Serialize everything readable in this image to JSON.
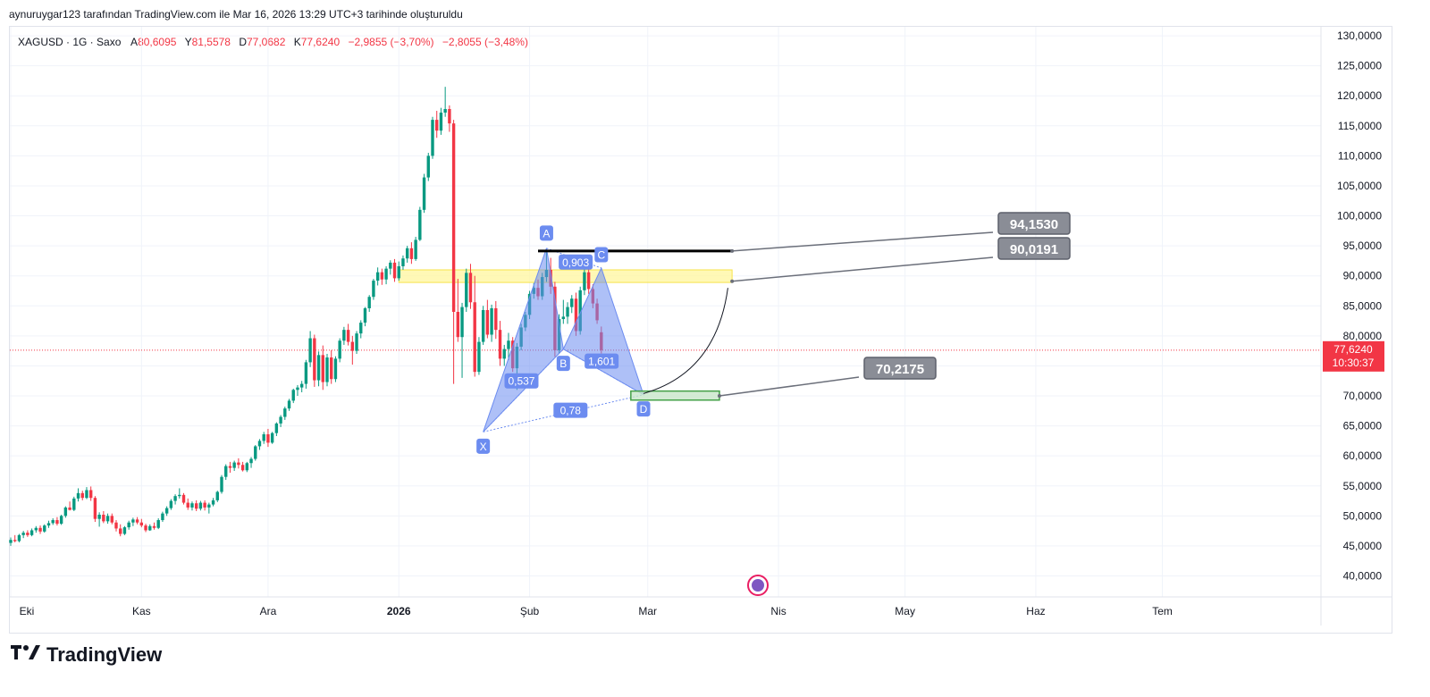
{
  "header": {
    "publish_line": "aynuruygar123 tarafından TradingView.com ile Mar 16, 2026 13:29 UTC+3 tarihinde oluşturuldu"
  },
  "legend": {
    "symbol": "XAGUSD · 1G · Saxo",
    "open_label": "A",
    "open": "80,6095",
    "high_label": "Y",
    "high": "81,5578",
    "low_label": "D",
    "low": "77,0682",
    "close_label": "K",
    "close": "77,6240",
    "change": "−2,9855 (−3,70%)",
    "change2": "−2,8055 (−3,48%)"
  },
  "price_badge": {
    "price": "77,6240",
    "timer": "10:30:37",
    "color": "#f23645"
  },
  "colors": {
    "up": "#089981",
    "down": "#f23645",
    "pattern": "#6c8cf0",
    "zone_yellow": "#fff59d",
    "zone_green": "#c8e6c9",
    "callout": "#8a8d96"
  },
  "logo": {
    "icon": "tradingview-logo-icon",
    "text": "TradingView"
  },
  "chart_data": {
    "type": "candlestick",
    "title": "",
    "y_axis": {
      "ticks": [
        "130,0000",
        "125,0000",
        "120,0000",
        "115,0000",
        "110,0000",
        "105,0000",
        "100,0000",
        "95,0000",
        "90,0000",
        "85,0000",
        "80,0000",
        "75,0000",
        "70,0000",
        "65,0000",
        "60,0000",
        "55,0000",
        "50,0000",
        "45,0000",
        "40,0000"
      ],
      "tick_values": [
        130,
        125,
        120,
        115,
        110,
        105,
        100,
        95,
        90,
        85,
        80,
        75,
        70,
        65,
        60,
        55,
        50,
        45,
        40
      ],
      "range": [
        36.5,
        131.5
      ],
      "position": "right"
    },
    "x_axis": {
      "labels": [
        "Eki",
        "Kas",
        "Ara",
        "2026",
        "Şub",
        "Mar",
        "Nis",
        "May",
        "Haz",
        "Tem"
      ],
      "label_days": [
        0,
        31,
        61,
        92,
        123,
        151,
        182,
        212,
        243,
        273
      ],
      "range_days": [
        -5,
        302
      ],
      "bold_labels": [
        "2026"
      ]
    },
    "candles_ohlc_by_day": [
      [
        0,
        45.5,
        46.4,
        45.0,
        46.0
      ],
      [
        1,
        46.0,
        46.8,
        45.6,
        45.8
      ],
      [
        2,
        45.8,
        47.0,
        45.6,
        46.8
      ],
      [
        3,
        46.8,
        47.5,
        46.3,
        47.2
      ],
      [
        4,
        47.2,
        47.6,
        46.5,
        46.8
      ],
      [
        5,
        46.8,
        47.9,
        46.6,
        47.6
      ],
      [
        6,
        47.6,
        48.3,
        47.2,
        48.0
      ],
      [
        7,
        48.0,
        48.4,
        47.0,
        47.4
      ],
      [
        8,
        47.4,
        48.6,
        47.2,
        48.4
      ],
      [
        9,
        48.4,
        49.2,
        48.0,
        48.8
      ],
      [
        10,
        48.8,
        49.6,
        48.5,
        49.3
      ],
      [
        11,
        49.3,
        49.8,
        48.4,
        48.7
      ],
      [
        12,
        48.7,
        50.2,
        48.5,
        50.0
      ],
      [
        13,
        50.0,
        51.6,
        49.7,
        51.4
      ],
      [
        14,
        51.4,
        52.4,
        50.9,
        51.0
      ],
      [
        15,
        51.0,
        53.2,
        50.8,
        52.9
      ],
      [
        16,
        52.9,
        54.6,
        52.4,
        53.8
      ],
      [
        17,
        53.8,
        54.2,
        52.6,
        53.0
      ],
      [
        18,
        53.0,
        54.8,
        52.8,
        54.3
      ],
      [
        19,
        54.3,
        54.9,
        52.5,
        53.0
      ],
      [
        20,
        53.0,
        53.3,
        49.0,
        49.5
      ],
      [
        21,
        49.5,
        50.6,
        48.2,
        50.2
      ],
      [
        22,
        50.2,
        50.8,
        48.8,
        49.1
      ],
      [
        23,
        49.1,
        50.4,
        48.7,
        50.0
      ],
      [
        24,
        50.0,
        50.4,
        48.6,
        48.9
      ],
      [
        25,
        48.9,
        49.3,
        47.4,
        47.9
      ],
      [
        26,
        47.9,
        48.6,
        46.6,
        47.0
      ],
      [
        27,
        47.0,
        48.3,
        46.8,
        48.1
      ],
      [
        28,
        48.1,
        49.2,
        47.7,
        48.9
      ],
      [
        29,
        48.9,
        49.7,
        48.3,
        49.4
      ],
      [
        30,
        49.4,
        49.8,
        48.6,
        48.9
      ],
      [
        31,
        48.9,
        49.5,
        48.1,
        48.4
      ],
      [
        32,
        48.4,
        48.7,
        47.3,
        47.6
      ],
      [
        33,
        47.6,
        48.6,
        47.5,
        48.3
      ],
      [
        34,
        48.3,
        48.9,
        47.7,
        48.0
      ],
      [
        35,
        48.0,
        49.6,
        47.8,
        49.3
      ],
      [
        36,
        49.3,
        50.7,
        49.0,
        50.4
      ],
      [
        37,
        50.4,
        51.6,
        50.0,
        51.3
      ],
      [
        38,
        51.3,
        52.8,
        51.0,
        52.5
      ],
      [
        39,
        52.5,
        53.6,
        51.9,
        53.3
      ],
      [
        40,
        53.3,
        54.6,
        52.9,
        53.5
      ],
      [
        41,
        53.5,
        53.8,
        51.9,
        52.2
      ],
      [
        42,
        52.2,
        52.9,
        51.0,
        51.4
      ],
      [
        43,
        51.4,
        52.4,
        50.9,
        52.1
      ],
      [
        44,
        52.1,
        52.6,
        50.8,
        51.2
      ],
      [
        45,
        51.2,
        52.5,
        50.9,
        52.2
      ],
      [
        46,
        52.2,
        52.6,
        50.9,
        51.4
      ],
      [
        47,
        51.4,
        52.2,
        50.4,
        51.9
      ],
      [
        48,
        51.9,
        53.0,
        51.6,
        52.6
      ],
      [
        49,
        52.6,
        54.2,
        52.3,
        54.0
      ],
      [
        50,
        54.0,
        56.8,
        53.7,
        56.5
      ],
      [
        51,
        56.5,
        58.6,
        56.0,
        58.3
      ],
      [
        52,
        58.3,
        59.0,
        57.2,
        58.0
      ],
      [
        53,
        58.0,
        59.2,
        57.5,
        58.9
      ],
      [
        54,
        58.9,
        59.6,
        57.9,
        58.5
      ],
      [
        55,
        58.5,
        59.0,
        57.4,
        57.6
      ],
      [
        56,
        57.6,
        59.0,
        57.3,
        58.8
      ],
      [
        57,
        58.8,
        59.8,
        58.0,
        59.5
      ],
      [
        58,
        59.5,
        61.8,
        59.2,
        61.6
      ],
      [
        59,
        61.6,
        62.8,
        61.0,
        62.5
      ],
      [
        60,
        62.5,
        64.0,
        62.0,
        63.6
      ],
      [
        61,
        63.6,
        64.5,
        61.5,
        62.2
      ],
      [
        62,
        62.2,
        64.0,
        62.0,
        63.8
      ],
      [
        63,
        63.8,
        65.6,
        63.3,
        65.4
      ],
      [
        64,
        65.4,
        66.8,
        64.8,
        66.5
      ],
      [
        65,
        66.5,
        68.2,
        66.0,
        67.9
      ],
      [
        66,
        67.9,
        69.5,
        67.5,
        69.2
      ],
      [
        67,
        69.2,
        71.2,
        68.8,
        71.0
      ],
      [
        68,
        71.0,
        71.8,
        70.0,
        71.4
      ],
      [
        69,
        71.4,
        72.5,
        70.6,
        72.0
      ],
      [
        70,
        72.0,
        76.0,
        71.2,
        75.6
      ],
      [
        71,
        75.6,
        80.8,
        74.8,
        79.6
      ],
      [
        72,
        79.6,
        80.2,
        71.5,
        72.6
      ],
      [
        73,
        72.6,
        77.4,
        71.6,
        76.8
      ],
      [
        74,
        76.8,
        78.4,
        71.0,
        72.3
      ],
      [
        75,
        72.3,
        77.0,
        71.6,
        76.4
      ],
      [
        76,
        76.4,
        77.6,
        72.0,
        72.8
      ],
      [
        77,
        72.8,
        76.6,
        72.3,
        76.2
      ],
      [
        78,
        76.2,
        79.6,
        75.6,
        79.2
      ],
      [
        79,
        79.2,
        81.5,
        78.5,
        81.0
      ],
      [
        80,
        81.0,
        82.0,
        78.4,
        79.0
      ],
      [
        81,
        79.0,
        80.0,
        75.2,
        77.5
      ],
      [
        82,
        77.5,
        80.8,
        77.0,
        80.4
      ],
      [
        83,
        80.4,
        82.6,
        79.6,
        82.2
      ],
      [
        84,
        82.2,
        84.8,
        81.6,
        84.6
      ],
      [
        85,
        84.6,
        86.8,
        84.0,
        86.5
      ],
      [
        86,
        86.5,
        89.5,
        86.0,
        89.2
      ],
      [
        87,
        89.2,
        91.4,
        88.4,
        90.6
      ],
      [
        88,
        90.6,
        91.2,
        88.5,
        89.4
      ],
      [
        89,
        89.4,
        91.6,
        88.6,
        91.2
      ],
      [
        90,
        91.2,
        92.6,
        90.2,
        92.2
      ],
      [
        91,
        92.2,
        92.8,
        89.0,
        89.6
      ],
      [
        92,
        89.6,
        92.4,
        89.2,
        91.6
      ],
      [
        93,
        91.6,
        93.4,
        91.0,
        92.9
      ],
      [
        94,
        92.9,
        95.0,
        92.2,
        94.6
      ],
      [
        95,
        94.6,
        95.6,
        92.0,
        92.8
      ],
      [
        96,
        92.8,
        96.5,
        92.5,
        96.0
      ],
      [
        97,
        96.0,
        101.5,
        95.8,
        101.0
      ],
      [
        98,
        101.0,
        107.0,
        100.5,
        106.4
      ],
      [
        99,
        106.4,
        110.5,
        105.8,
        110.0
      ],
      [
        100,
        110.0,
        116.5,
        109.5,
        116.0
      ],
      [
        101,
        116.0,
        117.5,
        113.0,
        114.2
      ],
      [
        102,
        114.2,
        118.0,
        113.5,
        117.2
      ],
      [
        103,
        117.2,
        121.5,
        116.5,
        117.8
      ],
      [
        104,
        117.8,
        118.4,
        114.0,
        115.4
      ],
      [
        105,
        115.4,
        116.0,
        72.0,
        84.0
      ],
      [
        106,
        84.0,
        89.5,
        79.0,
        79.8
      ],
      [
        107,
        79.8,
        85.5,
        73.0,
        84.8
      ],
      [
        108,
        84.8,
        91.2,
        84.0,
        90.5
      ],
      [
        109,
        90.5,
        92.0,
        84.5,
        85.6
      ],
      [
        110,
        85.6,
        90.0,
        73.2,
        74.0
      ],
      [
        111,
        74.0,
        79.8,
        73.5,
        79.0
      ],
      [
        112,
        79.0,
        85.0,
        78.5,
        84.3
      ],
      [
        113,
        84.3,
        86.0,
        79.6,
        80.2
      ],
      [
        114,
        80.2,
        85.2,
        79.0,
        84.6
      ],
      [
        115,
        84.6,
        85.8,
        79.5,
        81.0
      ],
      [
        116,
        81.0,
        82.5,
        75.0,
        76.2
      ],
      [
        117,
        76.2,
        78.5,
        75.0,
        77.8
      ],
      [
        118,
        77.8,
        80.5,
        76.0,
        79.2
      ],
      [
        119,
        79.2,
        79.8,
        74.0,
        74.6
      ],
      [
        120,
        74.6,
        78.8,
        71.0,
        78.2
      ],
      [
        121,
        78.2,
        82.0,
        77.6,
        81.4
      ],
      [
        122,
        81.4,
        84.0,
        80.8,
        83.5
      ],
      [
        123,
        83.5,
        87.5,
        82.8,
        87.0
      ],
      [
        124,
        87.0,
        88.8,
        86.2,
        88.0
      ],
      [
        125,
        88.0,
        89.4,
        86.0,
        86.6
      ],
      [
        126,
        86.6,
        90.5,
        86.0,
        89.8
      ],
      [
        127,
        89.8,
        94.6,
        89.0,
        91.0
      ],
      [
        128,
        91.0,
        93.0,
        87.0,
        88.2
      ],
      [
        129,
        88.2,
        89.0,
        76.5,
        77.6
      ],
      [
        130,
        77.6,
        83.6,
        77.0,
        82.8
      ],
      [
        131,
        82.8,
        86.0,
        82.0,
        83.2
      ],
      [
        132,
        83.2,
        85.6,
        82.0,
        84.8
      ],
      [
        133,
        84.8,
        86.8,
        83.8,
        86.2
      ],
      [
        134,
        86.2,
        87.2,
        80.0,
        80.8
      ],
      [
        135,
        80.8,
        88.2,
        80.2,
        87.6
      ],
      [
        136,
        87.6,
        91.2,
        86.8,
        90.6
      ],
      [
        137,
        90.6,
        91.6,
        87.0,
        87.8
      ],
      [
        138,
        87.8,
        88.6,
        84.6,
        85.4
      ],
      [
        139,
        85.4,
        86.2,
        82.0,
        82.6
      ],
      [
        140,
        80.6,
        81.5578,
        77.0682,
        77.624
      ]
    ],
    "pattern": {
      "name": "harmonic XABCD",
      "points": [
        {
          "label": "X",
          "day": 112,
          "price": 64.0
        },
        {
          "label": "A",
          "day": 127,
          "price": 94.6
        },
        {
          "label": "B",
          "day": 131,
          "price": 77.8
        },
        {
          "label": "C",
          "day": 140,
          "price": 91.3
        },
        {
          "label": "D",
          "day": 150,
          "price": 70.2
        }
      ],
      "ratios": [
        "0,537",
        "0,903",
        "1,601",
        "0,78"
      ]
    },
    "horizontal_line": {
      "price": 94.153,
      "from_day": 125,
      "to_day": 171
    },
    "zones": [
      {
        "name": "resistance",
        "from_day": 92,
        "to_day": 171,
        "top": 91.0,
        "bottom": 88.9
      },
      {
        "name": "support",
        "from_day": 147,
        "to_day": 168,
        "top": 70.8,
        "bottom": 69.3
      }
    ],
    "callouts": [
      "94,1530",
      "90,0191",
      "70,2175"
    ],
    "current_price": 77.624
  }
}
